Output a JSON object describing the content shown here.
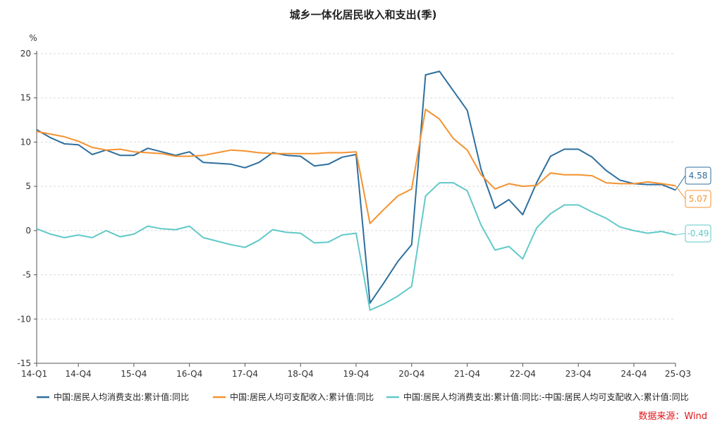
{
  "chart_data": {
    "type": "line",
    "title": "城乡一体化居民收入和支出(季)",
    "y_unit": "%",
    "ylim": [
      -15,
      20
    ],
    "y_ticks": [
      -15,
      -10,
      -5,
      0,
      5,
      10,
      15,
      20
    ],
    "x_tick_labels": [
      "14-Q1",
      "14-Q4",
      "15-Q4",
      "16-Q4",
      "17-Q4",
      "18-Q4",
      "19-Q4",
      "20-Q4",
      "21-Q4",
      "22-Q4",
      "23-Q4",
      "24-Q4",
      "25-Q3"
    ],
    "grid": true,
    "x": [
      "14-Q1",
      "14-Q2",
      "14-Q3",
      "14-Q4",
      "15-Q1",
      "15-Q2",
      "15-Q3",
      "15-Q4",
      "16-Q1",
      "16-Q2",
      "16-Q3",
      "16-Q4",
      "17-Q1",
      "17-Q2",
      "17-Q3",
      "17-Q4",
      "18-Q1",
      "18-Q2",
      "18-Q3",
      "18-Q4",
      "19-Q1",
      "19-Q2",
      "19-Q3",
      "19-Q4",
      "20-Q1",
      "20-Q2",
      "20-Q3",
      "20-Q4",
      "21-Q1",
      "21-Q2",
      "21-Q3",
      "21-Q4",
      "22-Q1",
      "22-Q2",
      "22-Q3",
      "22-Q4",
      "23-Q1",
      "23-Q2",
      "23-Q3",
      "23-Q4",
      "24-Q1",
      "24-Q2",
      "24-Q3",
      "24-Q4",
      "25-Q1",
      "25-Q2",
      "25-Q3"
    ],
    "series": [
      {
        "name": "中国:居民人均消费支出:累计值:同比",
        "color": "#2e6f9e",
        "values": [
          11.4,
          10.5,
          9.8,
          9.7,
          8.6,
          9.1,
          8.5,
          8.5,
          9.3,
          8.9,
          8.5,
          8.9,
          7.7,
          7.6,
          7.5,
          7.1,
          7.7,
          8.8,
          8.5,
          8.4,
          7.3,
          7.5,
          8.3,
          8.6,
          -8.2,
          -5.9,
          -3.5,
          -1.6,
          17.6,
          18.0,
          15.8,
          13.6,
          6.9,
          2.5,
          3.5,
          1.8,
          5.4,
          8.4,
          9.2,
          9.2,
          8.3,
          6.8,
          5.7,
          5.3,
          5.2,
          5.2,
          4.58
        ],
        "end_label": "4.58"
      },
      {
        "name": "中国:居民人均可支配收入:累计值:同比",
        "color": "#f5922f",
        "values": [
          11.2,
          10.9,
          10.6,
          10.1,
          9.4,
          9.1,
          9.2,
          8.9,
          8.8,
          8.7,
          8.4,
          8.4,
          8.5,
          8.8,
          9.1,
          9.0,
          8.8,
          8.7,
          8.7,
          8.7,
          8.7,
          8.8,
          8.8,
          8.9,
          0.8,
          2.4,
          3.9,
          4.7,
          13.7,
          12.6,
          10.4,
          9.1,
          6.3,
          4.7,
          5.3,
          5.0,
          5.1,
          6.5,
          6.3,
          6.3,
          6.2,
          5.4,
          5.3,
          5.3,
          5.5,
          5.3,
          5.07
        ],
        "end_label": "5.07"
      },
      {
        "name": "中国:居民人均消费支出:累计值:同比:-中国:居民人均可支配收入:累计值:同比",
        "color": "#62c9c8",
        "values": [
          0.2,
          -0.4,
          -0.8,
          -0.5,
          -0.8,
          0.0,
          -0.7,
          -0.4,
          0.5,
          0.2,
          0.1,
          0.5,
          -0.8,
          -1.2,
          -1.6,
          -1.9,
          -1.1,
          0.1,
          -0.2,
          -0.3,
          -1.4,
          -1.3,
          -0.5,
          -0.3,
          -9.0,
          -8.3,
          -7.4,
          -6.3,
          3.9,
          5.4,
          5.4,
          4.5,
          0.6,
          -2.2,
          -1.8,
          -3.2,
          0.3,
          1.9,
          2.9,
          2.9,
          2.1,
          1.4,
          0.4,
          0.0,
          -0.3,
          -0.1,
          -0.49
        ],
        "end_label": "-0.49"
      }
    ]
  },
  "source": "数据来源：Wind"
}
